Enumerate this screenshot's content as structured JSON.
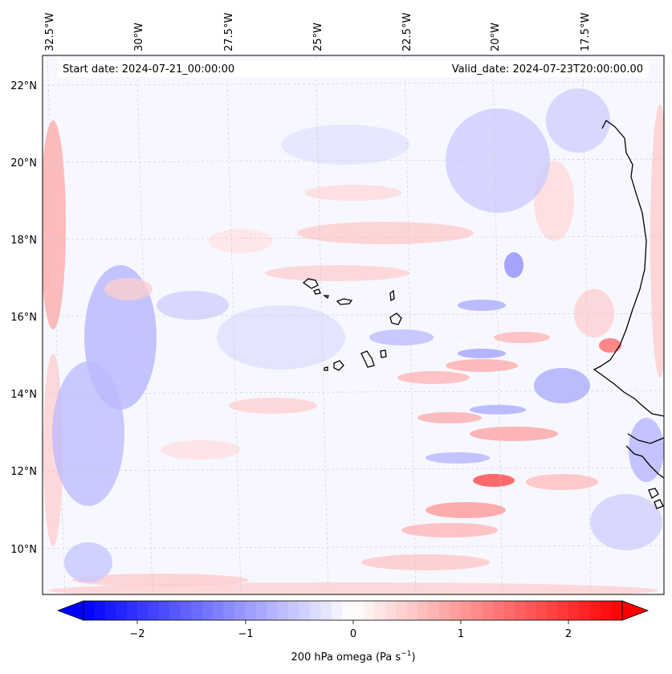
{
  "map": {
    "start_label": "Start date: 2024-07-21_00:00:00",
    "valid_label": "Valid_date: 2024-07-23T20:00:00.00",
    "lon_labels": [
      "32.5°W",
      "30°W",
      "27.5°W",
      "25°W",
      "22.5°W",
      "20°W",
      "17.5°W"
    ],
    "lat_labels": [
      "22°N",
      "20°N",
      "18°N",
      "16°N",
      "14°N",
      "12°N",
      "10°N"
    ],
    "gridlines": true,
    "coastline_color": "#000000"
  },
  "colorbar": {
    "tick_labels": [
      "−2",
      "−1",
      "0",
      "1",
      "2"
    ],
    "label_text": "200 hPa omega (Pa s",
    "label_superscript": "−1",
    "label_close": ")",
    "vmin": -2.6,
    "vmax": 2.6,
    "extend": "both",
    "colormap": "bwr",
    "colors": {
      "low": "#0000ff",
      "mid": "#ffffff",
      "high": "#ff0000"
    }
  }
}
